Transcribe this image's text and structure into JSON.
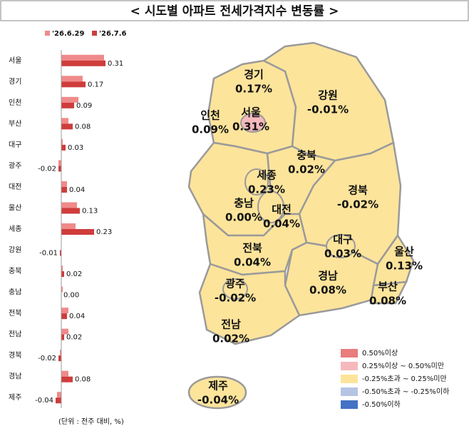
{
  "title": "< 시도별 아파트 전세가격지수 변동률 >",
  "chart_data": {
    "type": "bar",
    "orientation": "horizontal",
    "categories": [
      "서울",
      "경기",
      "인천",
      "부산",
      "대구",
      "광주",
      "대전",
      "울산",
      "세종",
      "강원",
      "충북",
      "충남",
      "전북",
      "전남",
      "경북",
      "경남",
      "제주"
    ],
    "series": [
      {
        "name": "'26.6.29",
        "color": "#f08a8a",
        "values": [
          0.3,
          0.15,
          0.12,
          0.05,
          0.01,
          -0.02,
          0.04,
          0.11,
          0.1,
          0.0,
          0.01,
          0.01,
          0.05,
          0.05,
          -0.01,
          0.05,
          -0.03
        ]
      },
      {
        "name": "'26.7.6",
        "color": "#cf3c3c",
        "values": [
          0.31,
          0.17,
          0.09,
          0.08,
          0.03,
          -0.02,
          0.04,
          0.13,
          0.23,
          -0.01,
          0.02,
          0.0,
          0.04,
          0.02,
          -0.02,
          0.08,
          -0.04
        ],
        "value_labels": [
          "0.31",
          "0.17",
          "0.09",
          "0.08",
          "0.03",
          "-0.02",
          "0.04",
          "0.13",
          "0.23",
          "-0.01",
          "0.02",
          "0.00",
          "0.04",
          "0.02",
          "-0.02",
          "0.08",
          "-0.04"
        ]
      }
    ],
    "xlim": [
      -0.1,
      0.35
    ],
    "note": "(단위 : 전주 대비, %)"
  },
  "map": {
    "regions": [
      {
        "name": "경기",
        "label": "0.17%"
      },
      {
        "name": "인천",
        "label": "0.09%"
      },
      {
        "name": "서울",
        "label": "0.31%"
      },
      {
        "name": "강원",
        "label": "-0.01%"
      },
      {
        "name": "충북",
        "label": "0.02%"
      },
      {
        "name": "세종",
        "label": "0.23%"
      },
      {
        "name": "충남",
        "label": "0.00%"
      },
      {
        "name": "대전",
        "label": "0.04%"
      },
      {
        "name": "경북",
        "label": "-0.02%"
      },
      {
        "name": "대구",
        "label": "0.03%"
      },
      {
        "name": "전북",
        "label": "0.04%"
      },
      {
        "name": "울산",
        "label": "0.13%"
      },
      {
        "name": "경남",
        "label": "0.08%"
      },
      {
        "name": "부산",
        "label": "0.08%"
      },
      {
        "name": "광주",
        "label": "-0.02%"
      },
      {
        "name": "전남",
        "label": "0.02%"
      },
      {
        "name": "제주",
        "label": "-0.04%"
      }
    ],
    "legend": [
      {
        "label": "0.50%이상",
        "color": "#e97c7c"
      },
      {
        "label": "0.25%이상 ~ 0.50%미만",
        "color": "#f5b9bd"
      },
      {
        "label": "-0.25%초과 ~ 0.25%미만",
        "color": "#fde49b"
      },
      {
        "label": "-0.50%초과 ~ -0.25%이하",
        "color": "#b6c4e4"
      },
      {
        "label": "-0.50%이하",
        "color": "#4472c4"
      }
    ]
  }
}
